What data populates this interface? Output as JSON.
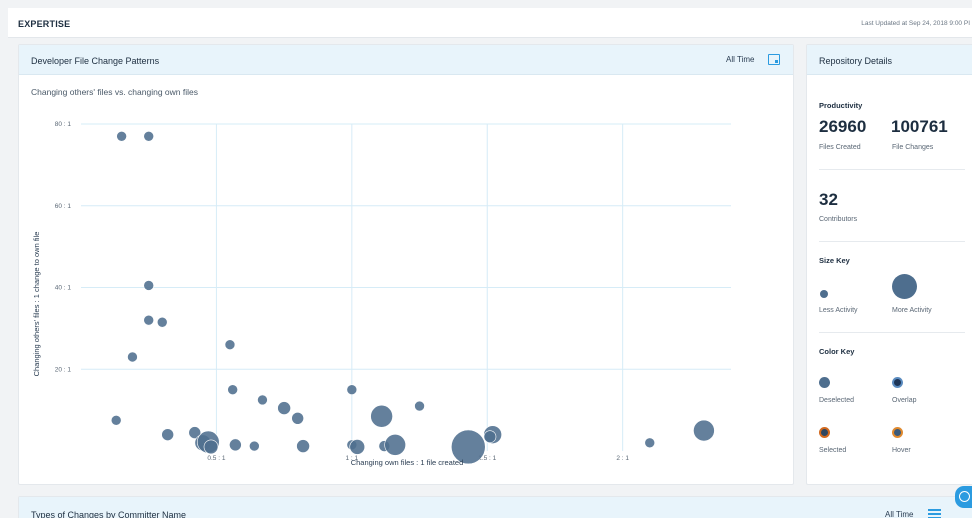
{
  "topbar": {
    "title": "EXPERTISE",
    "last_updated": "Last Updated at Sep 24, 2018 9:00 PI"
  },
  "chart_card": {
    "title": "Developer File Change Patterns",
    "range": "All Time",
    "icon": "calendar-icon"
  },
  "chart_data": {
    "type": "scatter",
    "title": "Changing others' files vs. changing own files",
    "xlabel": "Changing own files : 1 file created",
    "ylabel": "Changing others' files : 1 change to own file",
    "xlim": [
      0,
      2.4
    ],
    "ylim": [
      0,
      80
    ],
    "x_ticks": [
      0.5,
      1,
      1.5,
      2
    ],
    "x_tick_labels": [
      "0.5 : 1",
      "1 : 1",
      "1.5 : 1",
      "2 : 1"
    ],
    "y_ticks": [
      20,
      40,
      60,
      80
    ],
    "y_tick_labels": [
      "20 : 1",
      "40 : 1",
      "60 : 1",
      "80 : 1"
    ],
    "grid": true,
    "bubble_color": "#4e6e8e",
    "points": [
      {
        "x": 0.15,
        "y": 77,
        "size": 1
      },
      {
        "x": 0.25,
        "y": 77,
        "size": 1
      },
      {
        "x": 0.25,
        "y": 40.5,
        "size": 1
      },
      {
        "x": 0.25,
        "y": 32,
        "size": 1
      },
      {
        "x": 0.3,
        "y": 31.5,
        "size": 1
      },
      {
        "x": 0.19,
        "y": 23,
        "size": 1
      },
      {
        "x": 0.13,
        "y": 7.5,
        "size": 1
      },
      {
        "x": 0.32,
        "y": 4,
        "size": 1.2
      },
      {
        "x": 0.42,
        "y": 4.5,
        "size": 1.2
      },
      {
        "x": 0.45,
        "y": 2,
        "size": 1.6
      },
      {
        "x": 0.47,
        "y": 2.2,
        "size": 2.2
      },
      {
        "x": 0.48,
        "y": 1,
        "size": 1.4
      },
      {
        "x": 0.55,
        "y": 26,
        "size": 1
      },
      {
        "x": 0.56,
        "y": 15,
        "size": 1
      },
      {
        "x": 0.57,
        "y": 1.5,
        "size": 1.2
      },
      {
        "x": 0.64,
        "y": 1.2,
        "size": 1
      },
      {
        "x": 0.67,
        "y": 12.5,
        "size": 1
      },
      {
        "x": 0.75,
        "y": 10.5,
        "size": 1.3
      },
      {
        "x": 0.8,
        "y": 8,
        "size": 1.2
      },
      {
        "x": 0.82,
        "y": 1.2,
        "size": 1.3
      },
      {
        "x": 1.0,
        "y": 15,
        "size": 1
      },
      {
        "x": 1.0,
        "y": 1.5,
        "size": 1
      },
      {
        "x": 1.02,
        "y": 1,
        "size": 1.5
      },
      {
        "x": 1.11,
        "y": 8.5,
        "size": 2.2
      },
      {
        "x": 1.12,
        "y": 1.2,
        "size": 1.1
      },
      {
        "x": 1.16,
        "y": 1.5,
        "size": 2.1
      },
      {
        "x": 1.25,
        "y": 11,
        "size": 1
      },
      {
        "x": 1.43,
        "y": 1,
        "size": 3.4
      },
      {
        "x": 1.52,
        "y": 4,
        "size": 1.8
      },
      {
        "x": 1.51,
        "y": 3.5,
        "size": 1.2
      },
      {
        "x": 2.1,
        "y": 2,
        "size": 1
      },
      {
        "x": 2.3,
        "y": 5,
        "size": 2.1
      }
    ]
  },
  "details": {
    "title": "Repository Details",
    "productivity_label": "Productivity",
    "files_created_value": "26960",
    "files_created_label": "Files Created",
    "file_changes_value": "100761",
    "file_changes_label": "File Changes",
    "contributors_value": "32",
    "contributors_label": "Contributors",
    "size_key_label": "Size Key",
    "less_activity": "Less Activity",
    "more_activity": "More Activity",
    "color_key_label": "Color Key",
    "deselected": "Deselected",
    "overlap": "Overlap",
    "selected": "Selected",
    "hover": "Hover",
    "colors": {
      "deselected": "#4e6e8e",
      "overlap": "#1d3557",
      "selected": "#d2691e",
      "hover": "#e08a2f"
    }
  },
  "bottom_card": {
    "title": "Types of Changes by Committer Name",
    "range": "All Time",
    "icon": "filter-icon"
  }
}
